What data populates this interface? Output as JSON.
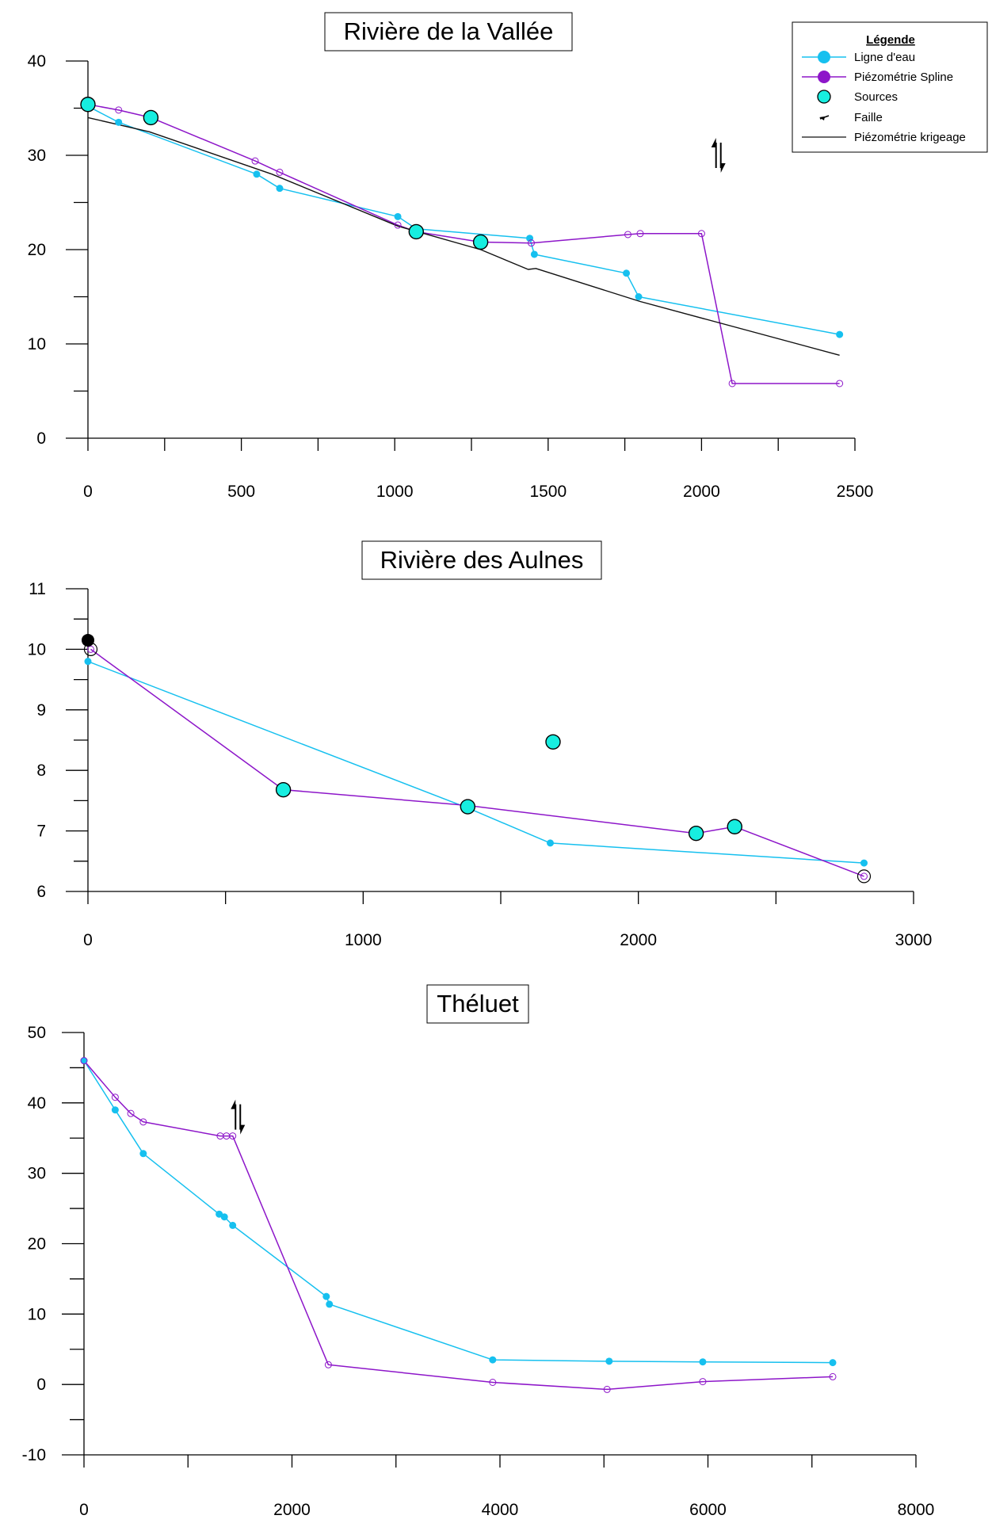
{
  "colors": {
    "ligne": "#16c0ef",
    "spline": "#8d16c9",
    "source": "#17eee0",
    "krigeage": "#111111",
    "axis": "#000000"
  },
  "legend": {
    "title": "Légende",
    "items": [
      {
        "label": "Ligne d'eau",
        "icon": "filled-circle-cyan-with-line"
      },
      {
        "label": "Piézométrie Spline",
        "icon": "filled-circle-purple-with-line"
      },
      {
        "label": "Sources",
        "icon": "cyan-circle-black-outline"
      },
      {
        "label": "Faille",
        "icon": "fault-arrow-icon"
      },
      {
        "label": "Piézométrie krigeage",
        "icon": "black-line"
      }
    ]
  },
  "chart_data": [
    {
      "type": "line",
      "title": "Rivière de la Vallée",
      "xlim": [
        0,
        2500
      ],
      "ylim": [
        0,
        40
      ],
      "xticks": [
        0,
        500,
        1000,
        1500,
        2000,
        2500
      ],
      "yticks": [
        0,
        10,
        20,
        30,
        40
      ],
      "legend_position": "top-right",
      "series": [
        {
          "name": "Ligne d'eau",
          "x": [
            0,
            100,
            550,
            625,
            1010,
            1070,
            1440,
            1455,
            1755,
            1795,
            2450
          ],
          "y": [
            35.2,
            33.5,
            28,
            26.5,
            23.5,
            22.2,
            21.2,
            19.5,
            17.5,
            15,
            11
          ]
        },
        {
          "name": "Piézométrie Spline",
          "x": [
            0,
            100,
            205,
            545,
            625,
            1010,
            1070,
            1280,
            1445,
            1760,
            1800,
            2000,
            2100,
            2450
          ],
          "y": [
            35.4,
            34.8,
            34,
            29.4,
            28.2,
            22.6,
            21.9,
            20.8,
            20.7,
            21.6,
            21.7,
            21.7,
            5.8,
            5.8
          ]
        },
        {
          "name": "Piézométrie krigeage",
          "x": [
            0,
            200,
            600,
            1010,
            1280,
            1435,
            1460,
            1800,
            2450
          ],
          "y": [
            34,
            32.5,
            28,
            22.5,
            20,
            17.9,
            18,
            14.5,
            8.8
          ]
        },
        {
          "name": "Sources",
          "x": [
            0,
            205,
            1070,
            1280
          ],
          "y": [
            35.4,
            34,
            21.9,
            20.8
          ]
        }
      ],
      "fault_marker": {
        "x": 2055,
        "y": 30
      }
    },
    {
      "type": "line",
      "title": "Rivière des Aulnes",
      "xlim": [
        0,
        3000
      ],
      "ylim": [
        6,
        11
      ],
      "xticks": [
        0,
        1000,
        2000,
        3000
      ],
      "yticks": [
        6,
        7,
        8,
        9,
        10,
        11
      ],
      "series": [
        {
          "name": "Ligne d'eau",
          "x": [
            0,
            1380,
            1680,
            2820
          ],
          "y": [
            9.8,
            7.38,
            6.8,
            6.47
          ]
        },
        {
          "name": "Piézométrie Spline",
          "x": [
            10,
            710,
            1380,
            2210,
            2350,
            2820
          ],
          "y": [
            10,
            7.68,
            7.42,
            6.96,
            7.07,
            6.25
          ]
        },
        {
          "name": "Sources",
          "x": [
            710,
            1380,
            1690,
            2210,
            2350
          ],
          "y": [
            7.68,
            7.4,
            8.47,
            6.96,
            7.07
          ]
        }
      ],
      "special_points": [
        {
          "x": 0,
          "y": 10.15,
          "style": "black-filled"
        },
        {
          "x": 10,
          "y": 10,
          "style": "open-circle"
        },
        {
          "x": 2820,
          "y": 6.25,
          "style": "open-circle"
        }
      ]
    },
    {
      "type": "line",
      "title": "Théluet",
      "xlim": [
        0,
        8000
      ],
      "ylim": [
        -10,
        50
      ],
      "xticks": [
        0,
        2000,
        4000,
        6000,
        8000
      ],
      "yticks": [
        -10,
        0,
        10,
        20,
        30,
        40,
        50
      ],
      "series": [
        {
          "name": "Ligne d'eau",
          "x": [
            0,
            300,
            570,
            1300,
            1350,
            1430,
            2330,
            2360,
            3930,
            5050,
            5950,
            7200
          ],
          "y": [
            46,
            39,
            32.8,
            24.2,
            23.8,
            22.6,
            12.5,
            11.4,
            3.5,
            3.3,
            3.2,
            3.1
          ]
        },
        {
          "name": "Piézométrie Spline",
          "x": [
            0,
            300,
            450,
            570,
            1310,
            1370,
            1430,
            2350,
            3930,
            5030,
            5950,
            7200
          ],
          "y": [
            46,
            40.8,
            38.5,
            37.3,
            35.3,
            35.3,
            35.3,
            2.8,
            0.3,
            -0.7,
            0.4,
            1.1
          ]
        }
      ],
      "fault_marker": {
        "x": 1480,
        "y": 38
      }
    }
  ]
}
